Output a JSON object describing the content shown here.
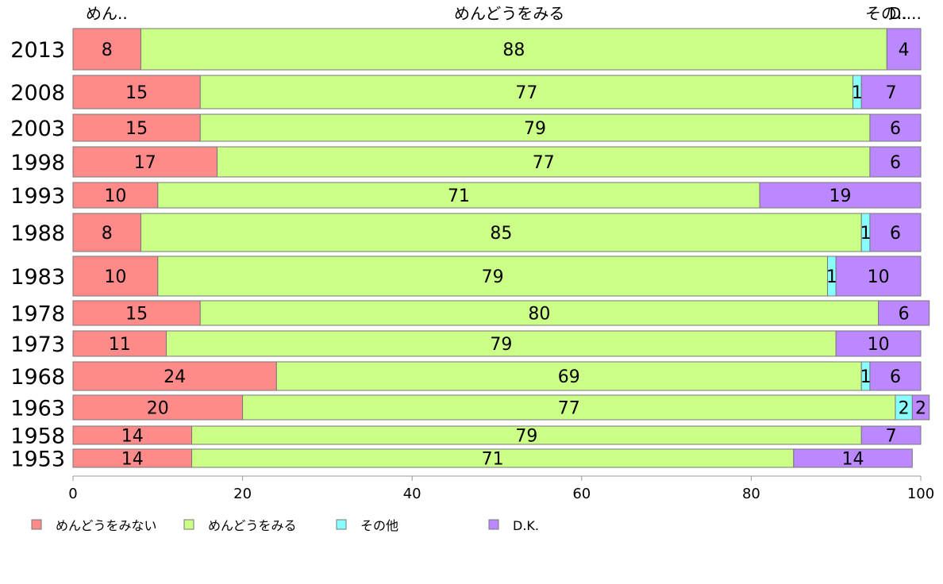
{
  "chart_data": {
    "type": "bar",
    "orientation": "horizontal",
    "stacked": true,
    "categories": [
      "2013",
      "2008",
      "2003",
      "1998",
      "1993",
      "1988",
      "1983",
      "1978",
      "1973",
      "1968",
      "1963",
      "1958",
      "1953"
    ],
    "series": [
      {
        "name": "めんどうをみない",
        "color": "#ff8a8a",
        "values": [
          8,
          15,
          15,
          17,
          10,
          8,
          10,
          15,
          11,
          24,
          20,
          14,
          14
        ]
      },
      {
        "name": "めんどうをみる",
        "color": "#ccff88",
        "values": [
          88,
          77,
          79,
          77,
          71,
          85,
          79,
          80,
          79,
          69,
          77,
          79,
          71
        ]
      },
      {
        "name": "その他",
        "color": "#88ffff",
        "values": [
          0,
          1,
          0,
          0,
          0,
          1,
          1,
          0,
          0,
          1,
          2,
          0,
          0
        ]
      },
      {
        "name": "D.K.",
        "color": "#bb88ff",
        "values": [
          4,
          7,
          6,
          6,
          19,
          6,
          10,
          6,
          10,
          6,
          2,
          7,
          14
        ]
      }
    ],
    "top_labels": [
      "めん..",
      "めんどうをみる",
      "その..",
      "D...."
    ],
    "x_ticks": [
      "0",
      "20",
      "40",
      "60",
      "80",
      "100"
    ],
    "xlim": [
      0,
      100
    ],
    "legend_position": "bottom",
    "grid": false
  }
}
